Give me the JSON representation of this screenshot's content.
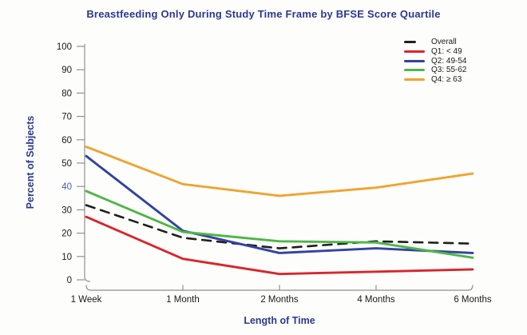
{
  "chart_data": {
    "type": "line",
    "title": "Breastfeeding Only During Study Time Frame by BFSE Score Quartile",
    "xlabel": "Length of Time",
    "ylabel": "Percent of Subjects",
    "categories": [
      "1 Week",
      "1 Month",
      "2 Months",
      "4 Months",
      "6 Months"
    ],
    "ylim": [
      0,
      100
    ],
    "ytick_step": 10,
    "grid": false,
    "legend_position": "top-right",
    "series": [
      {
        "name": "Overall",
        "color": "#1f1f1f",
        "dashed": true,
        "values": [
          32,
          18,
          13.5,
          16.5,
          15.5
        ]
      },
      {
        "name": "Q1: < 49",
        "color": "#d9262c",
        "dashed": false,
        "values": [
          27,
          9,
          2.5,
          3.5,
          4.5
        ]
      },
      {
        "name": "Q2: 49-54",
        "color": "#3342a3",
        "dashed": false,
        "values": [
          53,
          21,
          11.5,
          13.5,
          11.5
        ]
      },
      {
        "name": "Q3: 55-62",
        "color": "#4fb648",
        "dashed": false,
        "values": [
          38,
          20.5,
          16.5,
          16,
          9.5
        ]
      },
      {
        "name": "Q4: ≥ 63",
        "color": "#f0a32f",
        "dashed": false,
        "values": [
          57,
          41,
          36,
          39.5,
          45.5
        ]
      }
    ],
    "colors": {
      "title": "#2b3990",
      "axis": "#909090",
      "tick_label": "#1a1a1a",
      "highlighted_ytick_value": 40,
      "highlighted_ytick_color": "#4a55b0"
    }
  }
}
